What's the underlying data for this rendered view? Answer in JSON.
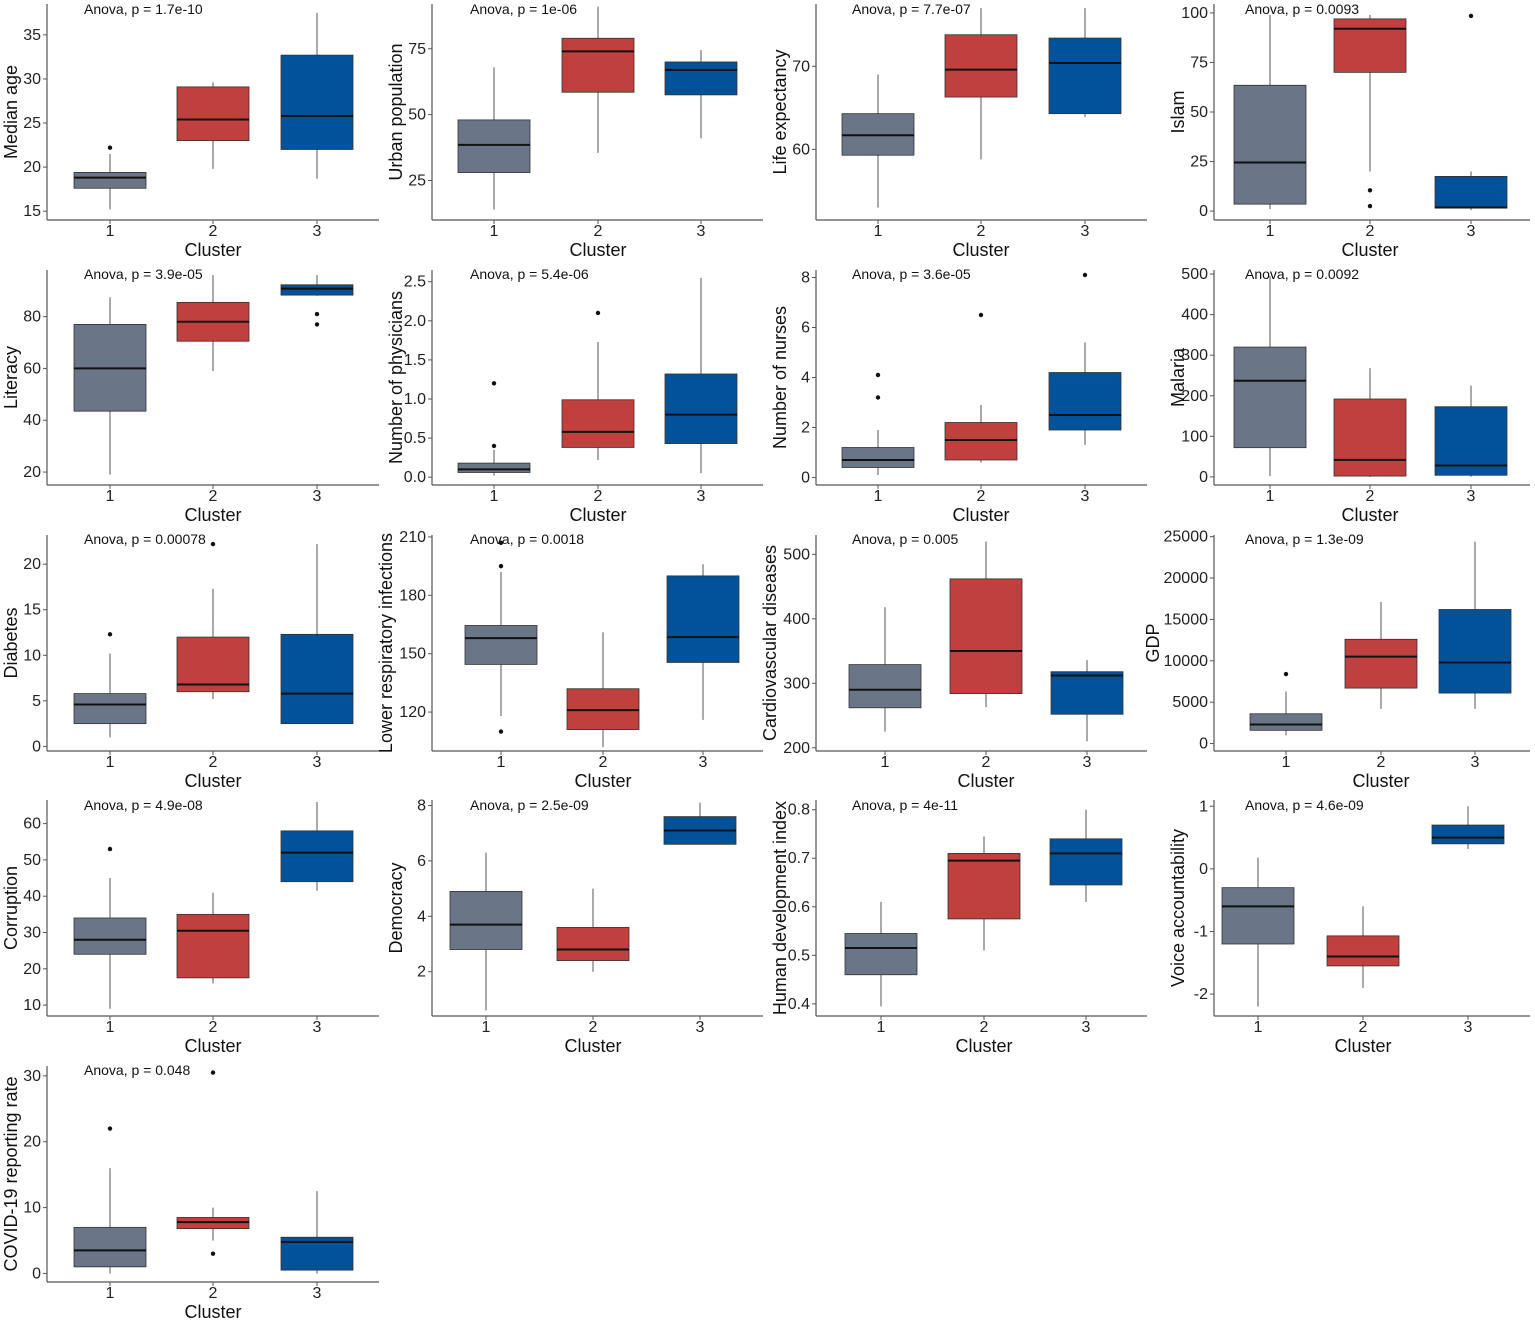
{
  "colors": {
    "cluster_1": "#6a7587",
    "cluster_2": "#c0403e",
    "cluster_3": "#02529a",
    "median": "#111111",
    "whisker": "#555555",
    "axis": "#555555"
  },
  "x_label": "Cluster",
  "clusters": [
    "1",
    "2",
    "3"
  ],
  "chart_data": [
    {
      "type": "boxplot",
      "ylabel": "Median age",
      "annotation": "Anova, p = 1.7e-10",
      "ylim": [
        14,
        38.5
      ],
      "yticks": [
        15,
        20,
        25,
        30,
        35
      ],
      "boxes": [
        {
          "cluster": "1",
          "min": 15.2,
          "q1": 17.6,
          "median": 18.8,
          "q3": 19.4,
          "max": 21.5,
          "outliers": [
            22.2
          ]
        },
        {
          "cluster": "2",
          "min": 19.8,
          "q1": 23.0,
          "median": 25.4,
          "q3": 29.1,
          "max": 29.6,
          "outliers": []
        },
        {
          "cluster": "3",
          "min": 18.7,
          "q1": 22.0,
          "median": 25.8,
          "q3": 32.7,
          "max": 37.5,
          "outliers": []
        }
      ]
    },
    {
      "type": "boxplot",
      "ylabel": "Urban population",
      "annotation": "Anova, p = 1e-06",
      "ylim": [
        10,
        92
      ],
      "yticks": [
        25,
        50,
        75
      ],
      "boxes": [
        {
          "cluster": "1",
          "min": 14.0,
          "q1": 28.0,
          "median": 38.5,
          "q3": 48.0,
          "max": 68.0,
          "outliers": []
        },
        {
          "cluster": "2",
          "min": 35.5,
          "q1": 58.5,
          "median": 74.0,
          "q3": 79.0,
          "max": 91.0,
          "outliers": []
        },
        {
          "cluster": "3",
          "min": 41.0,
          "q1": 57.5,
          "median": 67.0,
          "q3": 70.0,
          "max": 74.5,
          "outliers": []
        }
      ]
    },
    {
      "type": "boxplot",
      "ylabel": "Life expectancy",
      "annotation": "Anova, p = 7.7e-07",
      "ylim": [
        51.5,
        77.5
      ],
      "yticks": [
        60,
        70
      ],
      "boxes": [
        {
          "cluster": "1",
          "min": 53.0,
          "q1": 59.3,
          "median": 61.7,
          "q3": 64.3,
          "max": 69.0,
          "outliers": []
        },
        {
          "cluster": "2",
          "min": 58.8,
          "q1": 66.3,
          "median": 69.6,
          "q3": 73.8,
          "max": 77.0,
          "outliers": []
        },
        {
          "cluster": "3",
          "min": 63.9,
          "q1": 64.3,
          "median": 70.4,
          "q3": 73.4,
          "max": 77.0,
          "outliers": []
        }
      ]
    },
    {
      "type": "boxplot",
      "ylabel": "Islam",
      "annotation": "Anova, p = 0.0093",
      "ylim": [
        -4.5,
        104.5
      ],
      "yticks": [
        0,
        25,
        50,
        75,
        100
      ],
      "boxes": [
        {
          "cluster": "1",
          "min": 1.0,
          "q1": 3.5,
          "median": 24.5,
          "q3": 63.5,
          "max": 99.0,
          "outliers": []
        },
        {
          "cluster": "2",
          "min": 20.0,
          "q1": 70.0,
          "median": 92.0,
          "q3": 97.0,
          "max": 99.0,
          "outliers": [
            10.5,
            2.5
          ]
        },
        {
          "cluster": "3",
          "min": 0.5,
          "q1": 1.5,
          "median": 1.8,
          "q3": 17.5,
          "max": 20.0,
          "outliers": [
            98.5
          ]
        }
      ]
    },
    {
      "type": "boxplot",
      "ylabel": "Literacy",
      "annotation": "Anova, p = 3.9e-05",
      "ylim": [
        15,
        98
      ],
      "yticks": [
        20,
        40,
        60,
        80
      ],
      "boxes": [
        {
          "cluster": "1",
          "min": 19.0,
          "q1": 43.5,
          "median": 60.0,
          "q3": 77.0,
          "max": 87.5,
          "outliers": []
        },
        {
          "cluster": "2",
          "min": 59.0,
          "q1": 70.5,
          "median": 78.0,
          "q3": 85.5,
          "max": 96.0,
          "outliers": []
        },
        {
          "cluster": "3",
          "min": 88.0,
          "q1": 88.3,
          "median": 90.8,
          "q3": 92.3,
          "max": 96.0,
          "outliers": [
            81.0,
            77.0
          ]
        }
      ]
    },
    {
      "type": "boxplot",
      "ylabel": "Number of physicians",
      "annotation": "Anova, p = 5.4e-06",
      "ylim": [
        -0.1,
        2.65
      ],
      "yticks": [
        0.0,
        0.5,
        1.0,
        1.5,
        2.0,
        2.5
      ],
      "boxes": [
        {
          "cluster": "1",
          "min": 0.02,
          "q1": 0.06,
          "median": 0.1,
          "q3": 0.18,
          "max": 0.35,
          "outliers": [
            1.2,
            0.4
          ]
        },
        {
          "cluster": "2",
          "min": 0.22,
          "q1": 0.38,
          "median": 0.58,
          "q3": 0.99,
          "max": 1.73,
          "outliers": [
            2.1
          ]
        },
        {
          "cluster": "3",
          "min": 0.05,
          "q1": 0.43,
          "median": 0.8,
          "q3": 1.32,
          "max": 2.55,
          "outliers": []
        }
      ]
    },
    {
      "type": "boxplot",
      "ylabel": "Number of nurses",
      "annotation": "Anova, p = 3.6e-05",
      "ylim": [
        -0.3,
        8.3
      ],
      "yticks": [
        0,
        2,
        4,
        6,
        8
      ],
      "boxes": [
        {
          "cluster": "1",
          "min": 0.1,
          "q1": 0.4,
          "median": 0.7,
          "q3": 1.2,
          "max": 1.9,
          "outliers": [
            4.1,
            3.2
          ]
        },
        {
          "cluster": "2",
          "min": 0.6,
          "q1": 0.7,
          "median": 1.5,
          "q3": 2.2,
          "max": 2.9,
          "outliers": [
            6.5
          ]
        },
        {
          "cluster": "3",
          "min": 1.3,
          "q1": 1.9,
          "median": 2.5,
          "q3": 4.2,
          "max": 5.4,
          "outliers": [
            8.1
          ]
        }
      ]
    },
    {
      "type": "boxplot",
      "ylabel": "Malaria",
      "annotation": "Anova, p = 0.0092",
      "ylim": [
        -20,
        510
      ],
      "yticks": [
        0,
        100,
        200,
        300,
        400,
        500
      ],
      "boxes": [
        {
          "cluster": "1",
          "min": 2.0,
          "q1": 72.0,
          "median": 237.0,
          "q3": 320.0,
          "max": 495.0,
          "outliers": []
        },
        {
          "cluster": "2",
          "min": 0.0,
          "q1": 2.0,
          "median": 42.0,
          "q3": 192.0,
          "max": 268.0,
          "outliers": []
        },
        {
          "cluster": "3",
          "min": 0.0,
          "q1": 4.0,
          "median": 28.0,
          "q3": 173.0,
          "max": 225.0,
          "outliers": []
        }
      ]
    },
    {
      "type": "boxplot",
      "ylabel": "Diabetes",
      "annotation": "Anova, p = 0.00078",
      "ylim": [
        -0.5,
        23.2
      ],
      "yticks": [
        0,
        5,
        10,
        15,
        20
      ],
      "boxes": [
        {
          "cluster": "1",
          "min": 1.0,
          "q1": 2.5,
          "median": 4.6,
          "q3": 5.8,
          "max": 10.2,
          "outliers": [
            12.3
          ]
        },
        {
          "cluster": "2",
          "min": 5.2,
          "q1": 6.0,
          "median": 6.8,
          "q3": 12.0,
          "max": 17.3,
          "outliers": [
            22.2
          ]
        },
        {
          "cluster": "3",
          "min": 2.5,
          "q1": 2.5,
          "median": 5.8,
          "q3": 12.3,
          "max": 22.2,
          "outliers": []
        }
      ]
    },
    {
      "type": "boxplot",
      "ylabel": "Lower respiratory infections",
      "annotation": "Anova, p = 0.0018",
      "ylim": [
        100,
        211
      ],
      "yticks": [
        120,
        150,
        180,
        210
      ],
      "boxes": [
        {
          "cluster": "1",
          "min": 118.0,
          "q1": 144.5,
          "median": 158.0,
          "q3": 164.5,
          "max": 192.0,
          "outliers": [
            195.0,
            207.0,
            110.0
          ]
        },
        {
          "cluster": "2",
          "min": 102.0,
          "q1": 111.0,
          "median": 121.0,
          "q3": 132.0,
          "max": 161.0,
          "outliers": []
        },
        {
          "cluster": "3",
          "min": 116.0,
          "q1": 145.5,
          "median": 158.5,
          "q3": 190.0,
          "max": 196.0,
          "outliers": []
        }
      ]
    },
    {
      "type": "boxplot",
      "ylabel": "Cardiovascular diseases",
      "annotation": "Anova, p = 0.005",
      "ylim": [
        195,
        530
      ],
      "yticks": [
        200,
        300,
        400,
        500
      ],
      "boxes": [
        {
          "cluster": "1",
          "min": 225.0,
          "q1": 262.0,
          "median": 290.0,
          "q3": 329.0,
          "max": 418.0,
          "outliers": []
        },
        {
          "cluster": "2",
          "min": 263.0,
          "q1": 284.0,
          "median": 350.0,
          "q3": 462.0,
          "max": 520.0,
          "outliers": []
        },
        {
          "cluster": "3",
          "min": 210.0,
          "q1": 252.0,
          "median": 312.0,
          "q3": 318.0,
          "max": 336.0,
          "outliers": []
        }
      ]
    },
    {
      "type": "boxplot",
      "ylabel": "GDP",
      "annotation": "Anova, p = 1.3e-09",
      "ylim": [
        -900,
        25200
      ],
      "yticks": [
        0,
        5000,
        10000,
        15000,
        20000,
        25000
      ],
      "boxes": [
        {
          "cluster": "1",
          "min": 1000.0,
          "q1": 1600.0,
          "median": 2300.0,
          "q3": 3600.0,
          "max": 6300.0,
          "outliers": [
            8400.0
          ]
        },
        {
          "cluster": "2",
          "min": 4200.0,
          "q1": 6700.0,
          "median": 10500.0,
          "q3": 12600.0,
          "max": 17100.0,
          "outliers": []
        },
        {
          "cluster": "3",
          "min": 4200.0,
          "q1": 6100.0,
          "median": 9800.0,
          "q3": 16200.0,
          "max": 24400.0,
          "outliers": []
        }
      ]
    },
    {
      "type": "boxplot",
      "ylabel": "Corruption",
      "annotation": "Anova, p = 4.9e-08",
      "ylim": [
        7,
        66.5
      ],
      "yticks": [
        10,
        20,
        30,
        40,
        50,
        60
      ],
      "boxes": [
        {
          "cluster": "1",
          "min": 9.0,
          "q1": 24.0,
          "median": 28.0,
          "q3": 34.0,
          "max": 45.0,
          "outliers": [
            53.0
          ]
        },
        {
          "cluster": "2",
          "min": 16.0,
          "q1": 17.5,
          "median": 30.5,
          "q3": 35.0,
          "max": 41.0,
          "outliers": []
        },
        {
          "cluster": "3",
          "min": 41.5,
          "q1": 44.0,
          "median": 52.0,
          "q3": 58.0,
          "max": 66.0,
          "outliers": []
        }
      ]
    },
    {
      "type": "boxplot",
      "ylabel": "Democracy",
      "annotation": "Anova, p = 2.5e-09",
      "ylim": [
        0.4,
        8.2
      ],
      "yticks": [
        2,
        4,
        6,
        8
      ],
      "boxes": [
        {
          "cluster": "1",
          "min": 0.6,
          "q1": 2.8,
          "median": 3.7,
          "q3": 4.9,
          "max": 6.3,
          "outliers": []
        },
        {
          "cluster": "2",
          "min": 2.0,
          "q1": 2.4,
          "median": 2.8,
          "q3": 3.6,
          "max": 5.0,
          "outliers": []
        },
        {
          "cluster": "3",
          "min": 6.6,
          "q1": 6.6,
          "median": 7.1,
          "q3": 7.6,
          "max": 8.1,
          "outliers": []
        }
      ]
    },
    {
      "type": "boxplot",
      "ylabel": "Human development index",
      "annotation": "Anova, p = 4e-11",
      "ylim": [
        0.375,
        0.82
      ],
      "yticks": [
        0.4,
        0.5,
        0.6,
        0.7,
        0.8
      ],
      "boxes": [
        {
          "cluster": "1",
          "min": 0.395,
          "q1": 0.46,
          "median": 0.515,
          "q3": 0.545,
          "max": 0.61,
          "outliers": []
        },
        {
          "cluster": "2",
          "min": 0.51,
          "q1": 0.575,
          "median": 0.695,
          "q3": 0.71,
          "max": 0.745,
          "outliers": []
        },
        {
          "cluster": "3",
          "min": 0.61,
          "q1": 0.645,
          "median": 0.71,
          "q3": 0.74,
          "max": 0.8,
          "outliers": []
        }
      ]
    },
    {
      "type": "boxplot",
      "ylabel": "Voice accountability",
      "annotation": "Anova, p = 4.6e-09",
      "ylim": [
        -2.35,
        1.1
      ],
      "yticks": [
        -2,
        -1,
        0,
        1
      ],
      "boxes": [
        {
          "cluster": "1",
          "min": -2.2,
          "q1": -1.2,
          "median": -0.6,
          "q3": -0.3,
          "max": 0.18,
          "outliers": []
        },
        {
          "cluster": "2",
          "min": -1.9,
          "q1": -1.55,
          "median": -1.4,
          "q3": -1.07,
          "max": -0.6,
          "outliers": []
        },
        {
          "cluster": "3",
          "min": 0.32,
          "q1": 0.4,
          "median": 0.5,
          "q3": 0.7,
          "max": 1.0,
          "outliers": []
        }
      ]
    },
    {
      "type": "boxplot",
      "ylabel": "COVID-19 reporting rate",
      "annotation": "Anova, p = 0.048",
      "ylim": [
        -1.3,
        31.5
      ],
      "yticks": [
        0,
        10,
        20,
        30
      ],
      "boxes": [
        {
          "cluster": "1",
          "min": 0.0,
          "q1": 1.0,
          "median": 3.5,
          "q3": 7.0,
          "max": 16.0,
          "outliers": [
            22.0
          ]
        },
        {
          "cluster": "2",
          "min": 5.0,
          "q1": 6.8,
          "median": 7.8,
          "q3": 8.5,
          "max": 10.0,
          "outliers": [
            30.5,
            3.0
          ]
        },
        {
          "cluster": "3",
          "min": 0.0,
          "q1": 0.5,
          "median": 4.8,
          "q3": 5.5,
          "max": 12.5,
          "outliers": []
        }
      ]
    }
  ]
}
